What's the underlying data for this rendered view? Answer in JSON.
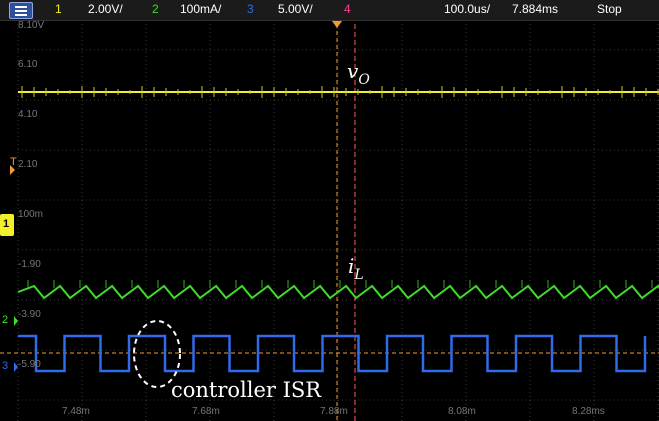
{
  "header": {
    "ch1_num": "1",
    "ch1_scale": "2.00V/",
    "ch2_num": "2",
    "ch2_scale": "100mA/",
    "ch3_num": "3",
    "ch3_scale": "5.00V/",
    "ch4_num": "4",
    "timebase": "100.0us/",
    "delay": "7.884ms",
    "run_state": "Stop"
  },
  "colors": {
    "ch1": "#f2ee2a",
    "ch2": "#3fdc2a",
    "ch3": "#2f6bea",
    "ch4": "#ff3e9a",
    "trigger": "#f39b2b",
    "grid": "#3a3a3a"
  },
  "left_labels": [
    "8.10V",
    "6.10",
    "4.10",
    "2.10",
    "100m",
    "-1.90",
    "-3.90",
    "-5.90"
  ],
  "time_labels": [
    "7.48m",
    "7.68m",
    "7.88m",
    "8.08m",
    "8.28ms"
  ],
  "markers": {
    "trigger_level": "T",
    "ch1_ground": "1",
    "ch2_ground": "2",
    "ch3_ground": "3"
  },
  "annotations": {
    "vo_letter": "v",
    "vo_sub": "O",
    "il_letter": "i",
    "il_sub": "L",
    "isr_label": "controller ISR"
  }
}
